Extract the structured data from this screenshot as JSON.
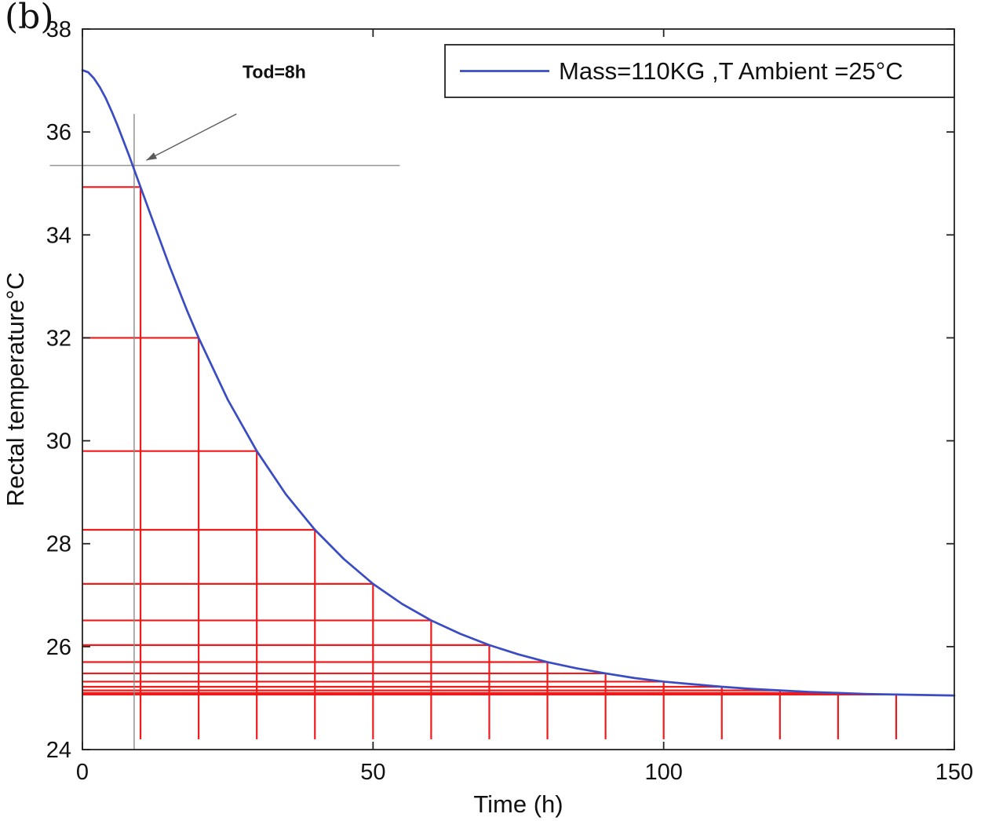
{
  "figure_label": "(b)",
  "chart_data": {
    "type": "line",
    "title": "",
    "xlabel": "Time (h)",
    "ylabel": "Rectal temperature°C",
    "xlim": [
      0,
      150
    ],
    "ylim": [
      24,
      38
    ],
    "xticks": [
      0,
      50,
      100,
      150
    ],
    "yticks": [
      24,
      26,
      28,
      30,
      32,
      34,
      36,
      38
    ],
    "grid": false,
    "legend": {
      "position": "top-right",
      "entries": [
        {
          "label": "Mass=110KG ,T Ambient =25°C",
          "color": "#3a4cc4"
        }
      ]
    },
    "series": [
      {
        "name": "rectal-temperature-cooling-curve",
        "color": "#3a4cc4",
        "x": [
          0,
          1,
          2,
          3,
          4,
          5,
          6,
          8,
          10,
          12,
          15,
          18,
          20,
          25,
          30,
          35,
          40,
          45,
          50,
          55,
          60,
          65,
          70,
          75,
          80,
          85,
          90,
          95,
          100,
          105,
          110,
          115,
          120,
          125,
          130,
          135,
          140,
          145,
          150
        ],
        "y": [
          37.2,
          37.16,
          37.04,
          36.87,
          36.66,
          36.41,
          36.14,
          35.55,
          34.93,
          34.31,
          33.39,
          32.53,
          32.0,
          30.8,
          29.8,
          28.96,
          28.27,
          27.7,
          27.22,
          26.83,
          26.51,
          26.25,
          26.03,
          25.85,
          25.7,
          25.58,
          25.48,
          25.39,
          25.32,
          25.27,
          25.22,
          25.18,
          25.15,
          25.12,
          25.1,
          25.08,
          25.07,
          25.06,
          25.05
        ]
      }
    ],
    "staircase": {
      "name": "sampling-staircase",
      "color": "#ef1a1a",
      "times": [
        10,
        20,
        30,
        40,
        50,
        60,
        70,
        80,
        90,
        100,
        110,
        120,
        130,
        140
      ],
      "temps": [
        34.93,
        32.0,
        29.8,
        28.27,
        27.22,
        26.51,
        26.03,
        25.7,
        25.48,
        25.32,
        25.22,
        25.15,
        25.1,
        25.07
      ],
      "bottom": 24.2
    },
    "annotation": {
      "label": "Tod=8h",
      "label_pos": {
        "t": 33,
        "temp": 37.05
      },
      "arrow": {
        "from": {
          "t": 26.5,
          "temp": 36.35
        },
        "to": {
          "t": 11,
          "temp": 35.45
        }
      },
      "vline": {
        "t": 8.9,
        "temp_from": 24.0,
        "temp_to": 36.35
      },
      "hline": {
        "temp": 35.35,
        "t_from": -5.6,
        "t_to": 54.6
      }
    }
  }
}
